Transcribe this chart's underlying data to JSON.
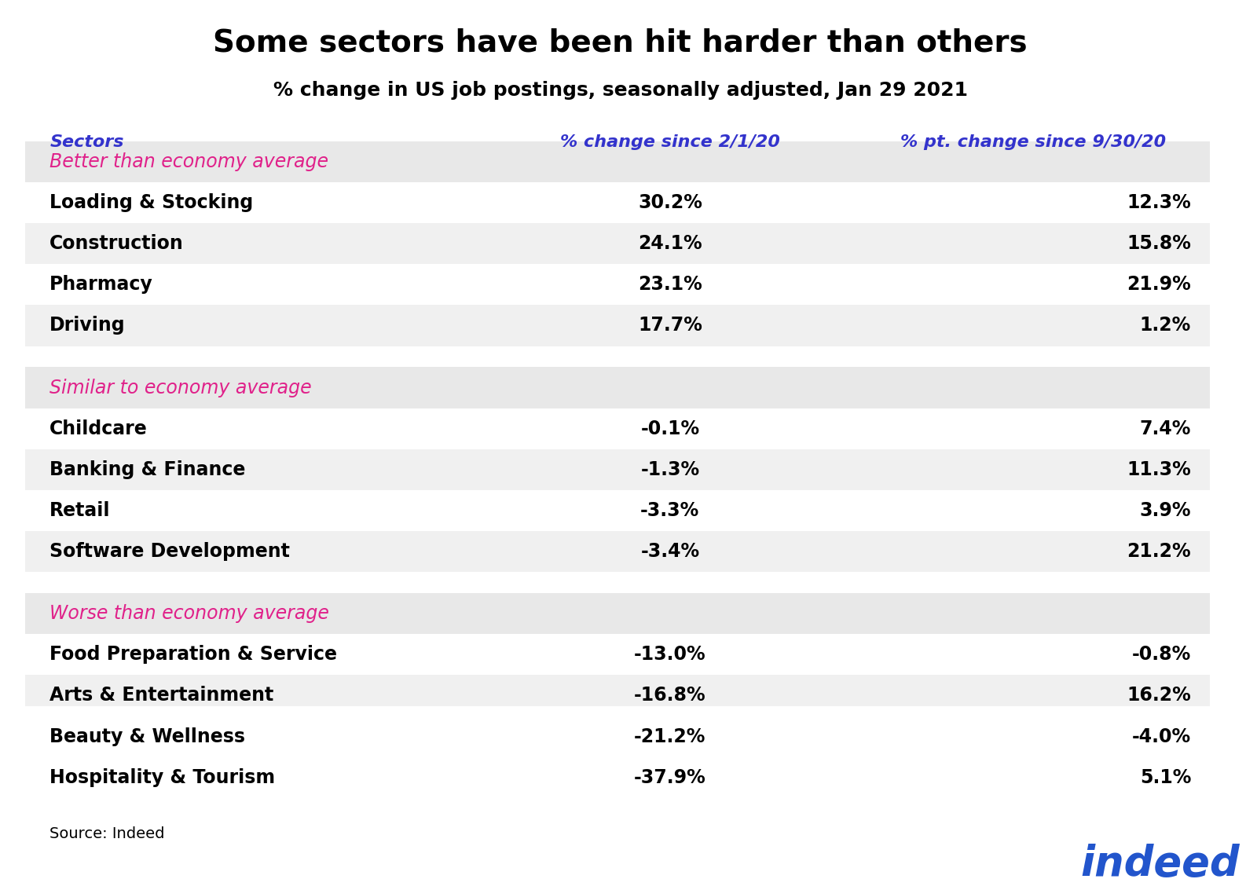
{
  "title": "Some sectors have been hit harder than others",
  "subtitle": "% change in US job postings, seasonally adjusted, Jan 29 2021",
  "col_headers": [
    "Sectors",
    "% change since 2/1/20",
    "% pt. change since 9/30/20"
  ],
  "col_header_color": "#3333cc",
  "groups": [
    {
      "label": "Better than economy average",
      "label_color": "#e0218a",
      "rows": [
        [
          "Loading & Stocking",
          "30.2%",
          "12.3%"
        ],
        [
          "Construction",
          "24.1%",
          "15.8%"
        ],
        [
          "Pharmacy",
          "23.1%",
          "21.9%"
        ],
        [
          "Driving",
          "17.7%",
          "1.2%"
        ]
      ]
    },
    {
      "label": "Similar to economy average",
      "label_color": "#e0218a",
      "rows": [
        [
          "Childcare",
          "-0.1%",
          "7.4%"
        ],
        [
          "Banking & Finance",
          "-1.3%",
          "11.3%"
        ],
        [
          "Retail",
          "-3.3%",
          "3.9%"
        ],
        [
          "Software Development",
          "-3.4%",
          "21.2%"
        ]
      ]
    },
    {
      "label": "Worse than economy average",
      "label_color": "#e0218a",
      "rows": [
        [
          "Food Preparation & Service",
          "-13.0%",
          "-0.8%"
        ],
        [
          "Arts & Entertainment",
          "-16.8%",
          "16.2%"
        ],
        [
          "Beauty & Wellness",
          "-21.2%",
          "-4.0%"
        ],
        [
          "Hospitality & Tourism",
          "-37.9%",
          "5.1%"
        ]
      ]
    }
  ],
  "source_text": "Source: Indeed",
  "background_color": "#ffffff",
  "row_bg_even": "#f0f0f0",
  "row_bg_odd": "#ffffff",
  "group_header_bg": "#e8e8e8",
  "title_fontsize": 28,
  "subtitle_fontsize": 18,
  "header_fontsize": 16,
  "row_fontsize": 17,
  "group_label_fontsize": 17,
  "indeed_color_i": "#4444ff",
  "indeed_color_ndeed": "#2222cc"
}
